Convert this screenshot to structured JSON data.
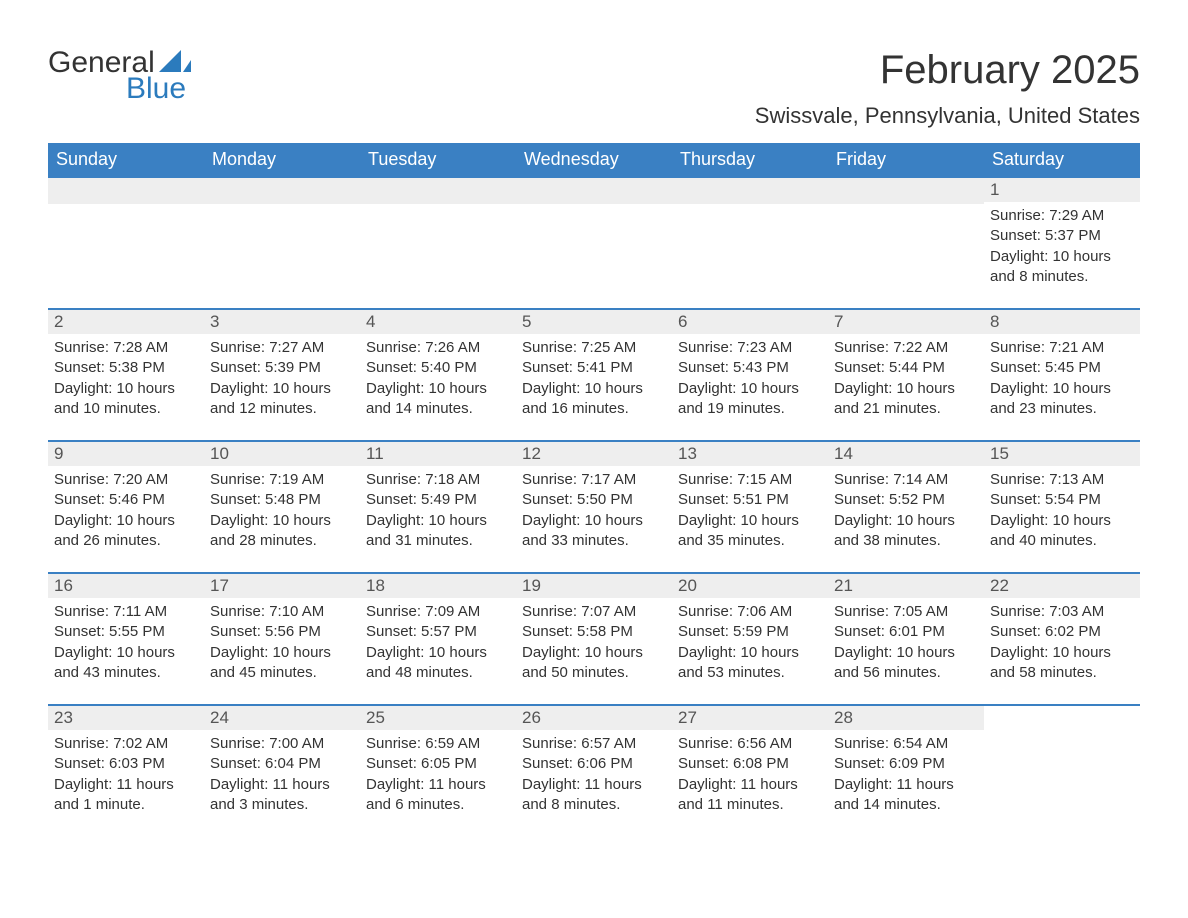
{
  "logo": {
    "word1": "General",
    "word2": "Blue",
    "sail_color": "#2b7bbd"
  },
  "title": "February 2025",
  "subtitle": "Swissvale, Pennsylvania, United States",
  "colors": {
    "header_bg": "#3a80c3",
    "header_text": "#ffffff",
    "daynum_bg": "#eeeeee",
    "row_border": "#3a80c3",
    "body_text": "#333333"
  },
  "typography": {
    "title_fontsize": 40,
    "subtitle_fontsize": 22,
    "header_fontsize": 18,
    "daynum_fontsize": 17,
    "body_fontsize": 15,
    "font_family": "Segoe UI"
  },
  "calendar": {
    "type": "table",
    "columns": [
      "Sunday",
      "Monday",
      "Tuesday",
      "Wednesday",
      "Thursday",
      "Friday",
      "Saturday"
    ],
    "weeks": [
      [
        null,
        null,
        null,
        null,
        null,
        null,
        {
          "n": "1",
          "sunrise": "Sunrise: 7:29 AM",
          "sunset": "Sunset: 5:37 PM",
          "day1": "Daylight: 10 hours",
          "day2": "and 8 minutes."
        }
      ],
      [
        {
          "n": "2",
          "sunrise": "Sunrise: 7:28 AM",
          "sunset": "Sunset: 5:38 PM",
          "day1": "Daylight: 10 hours",
          "day2": "and 10 minutes."
        },
        {
          "n": "3",
          "sunrise": "Sunrise: 7:27 AM",
          "sunset": "Sunset: 5:39 PM",
          "day1": "Daylight: 10 hours",
          "day2": "and 12 minutes."
        },
        {
          "n": "4",
          "sunrise": "Sunrise: 7:26 AM",
          "sunset": "Sunset: 5:40 PM",
          "day1": "Daylight: 10 hours",
          "day2": "and 14 minutes."
        },
        {
          "n": "5",
          "sunrise": "Sunrise: 7:25 AM",
          "sunset": "Sunset: 5:41 PM",
          "day1": "Daylight: 10 hours",
          "day2": "and 16 minutes."
        },
        {
          "n": "6",
          "sunrise": "Sunrise: 7:23 AM",
          "sunset": "Sunset: 5:43 PM",
          "day1": "Daylight: 10 hours",
          "day2": "and 19 minutes."
        },
        {
          "n": "7",
          "sunrise": "Sunrise: 7:22 AM",
          "sunset": "Sunset: 5:44 PM",
          "day1": "Daylight: 10 hours",
          "day2": "and 21 minutes."
        },
        {
          "n": "8",
          "sunrise": "Sunrise: 7:21 AM",
          "sunset": "Sunset: 5:45 PM",
          "day1": "Daylight: 10 hours",
          "day2": "and 23 minutes."
        }
      ],
      [
        {
          "n": "9",
          "sunrise": "Sunrise: 7:20 AM",
          "sunset": "Sunset: 5:46 PM",
          "day1": "Daylight: 10 hours",
          "day2": "and 26 minutes."
        },
        {
          "n": "10",
          "sunrise": "Sunrise: 7:19 AM",
          "sunset": "Sunset: 5:48 PM",
          "day1": "Daylight: 10 hours",
          "day2": "and 28 minutes."
        },
        {
          "n": "11",
          "sunrise": "Sunrise: 7:18 AM",
          "sunset": "Sunset: 5:49 PM",
          "day1": "Daylight: 10 hours",
          "day2": "and 31 minutes."
        },
        {
          "n": "12",
          "sunrise": "Sunrise: 7:17 AM",
          "sunset": "Sunset: 5:50 PM",
          "day1": "Daylight: 10 hours",
          "day2": "and 33 minutes."
        },
        {
          "n": "13",
          "sunrise": "Sunrise: 7:15 AM",
          "sunset": "Sunset: 5:51 PM",
          "day1": "Daylight: 10 hours",
          "day2": "and 35 minutes."
        },
        {
          "n": "14",
          "sunrise": "Sunrise: 7:14 AM",
          "sunset": "Sunset: 5:52 PM",
          "day1": "Daylight: 10 hours",
          "day2": "and 38 minutes."
        },
        {
          "n": "15",
          "sunrise": "Sunrise: 7:13 AM",
          "sunset": "Sunset: 5:54 PM",
          "day1": "Daylight: 10 hours",
          "day2": "and 40 minutes."
        }
      ],
      [
        {
          "n": "16",
          "sunrise": "Sunrise: 7:11 AM",
          "sunset": "Sunset: 5:55 PM",
          "day1": "Daylight: 10 hours",
          "day2": "and 43 minutes."
        },
        {
          "n": "17",
          "sunrise": "Sunrise: 7:10 AM",
          "sunset": "Sunset: 5:56 PM",
          "day1": "Daylight: 10 hours",
          "day2": "and 45 minutes."
        },
        {
          "n": "18",
          "sunrise": "Sunrise: 7:09 AM",
          "sunset": "Sunset: 5:57 PM",
          "day1": "Daylight: 10 hours",
          "day2": "and 48 minutes."
        },
        {
          "n": "19",
          "sunrise": "Sunrise: 7:07 AM",
          "sunset": "Sunset: 5:58 PM",
          "day1": "Daylight: 10 hours",
          "day2": "and 50 minutes."
        },
        {
          "n": "20",
          "sunrise": "Sunrise: 7:06 AM",
          "sunset": "Sunset: 5:59 PM",
          "day1": "Daylight: 10 hours",
          "day2": "and 53 minutes."
        },
        {
          "n": "21",
          "sunrise": "Sunrise: 7:05 AM",
          "sunset": "Sunset: 6:01 PM",
          "day1": "Daylight: 10 hours",
          "day2": "and 56 minutes."
        },
        {
          "n": "22",
          "sunrise": "Sunrise: 7:03 AM",
          "sunset": "Sunset: 6:02 PM",
          "day1": "Daylight: 10 hours",
          "day2": "and 58 minutes."
        }
      ],
      [
        {
          "n": "23",
          "sunrise": "Sunrise: 7:02 AM",
          "sunset": "Sunset: 6:03 PM",
          "day1": "Daylight: 11 hours",
          "day2": "and 1 minute."
        },
        {
          "n": "24",
          "sunrise": "Sunrise: 7:00 AM",
          "sunset": "Sunset: 6:04 PM",
          "day1": "Daylight: 11 hours",
          "day2": "and 3 minutes."
        },
        {
          "n": "25",
          "sunrise": "Sunrise: 6:59 AM",
          "sunset": "Sunset: 6:05 PM",
          "day1": "Daylight: 11 hours",
          "day2": "and 6 minutes."
        },
        {
          "n": "26",
          "sunrise": "Sunrise: 6:57 AM",
          "sunset": "Sunset: 6:06 PM",
          "day1": "Daylight: 11 hours",
          "day2": "and 8 minutes."
        },
        {
          "n": "27",
          "sunrise": "Sunrise: 6:56 AM",
          "sunset": "Sunset: 6:08 PM",
          "day1": "Daylight: 11 hours",
          "day2": "and 11 minutes."
        },
        {
          "n": "28",
          "sunrise": "Sunrise: 6:54 AM",
          "sunset": "Sunset: 6:09 PM",
          "day1": "Daylight: 11 hours",
          "day2": "and 14 minutes."
        },
        null
      ]
    ]
  }
}
